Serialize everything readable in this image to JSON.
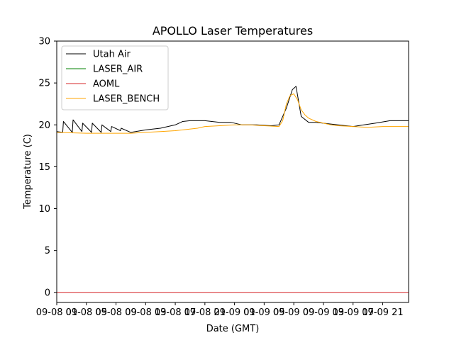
{
  "chart_data": {
    "type": "line",
    "title": "APOLLO Laser Temperatures",
    "xlabel": "Date (GMT)",
    "ylabel": "Temperature (C)",
    "x_unit": "hours since 09-08 00:00 GMT",
    "xlim": [
      0,
      47.5
    ],
    "ylim": [
      -1.2,
      30
    ],
    "grid": false,
    "legend_position": "top-left",
    "yticks": [
      0,
      5,
      10,
      15,
      20,
      25,
      30
    ],
    "xticks": [
      {
        "value": 0,
        "label": "09-08 01"
      },
      {
        "value": 4,
        "label": "09-08 05"
      },
      {
        "value": 8,
        "label": "09-08 09"
      },
      {
        "value": 12,
        "label": "09-08 13"
      },
      {
        "value": 16,
        "label": "09-08 17"
      },
      {
        "value": 20,
        "label": "09-08 21"
      },
      {
        "value": 24,
        "label": "09-09 01"
      },
      {
        "value": 28,
        "label": "09-09 05"
      },
      {
        "value": 32,
        "label": "09-09 09"
      },
      {
        "value": 36,
        "label": "09-09 13"
      },
      {
        "value": 40,
        "label": "09-09 17"
      },
      {
        "value": 44,
        "label": "09-09 21"
      }
    ],
    "series": [
      {
        "name": "Utah Air",
        "color": "#000000",
        "x": [
          0,
          0.8,
          0.9,
          2.1,
          2.2,
          3.4,
          3.5,
          4.7,
          4.8,
          6.0,
          6.1,
          7.3,
          7.4,
          8.6,
          8.7,
          10.0,
          12.0,
          14.0,
          16.0,
          17.0,
          18.0,
          20.0,
          22.0,
          23.5,
          25.0,
          27.0,
          29.0,
          30.0,
          31.0,
          31.8,
          32.3,
          33.0,
          34.0,
          35.0,
          37.0,
          40.0,
          43.0,
          45.0,
          47.5
        ],
        "y": [
          19.2,
          19.1,
          20.4,
          19.1,
          20.6,
          19.2,
          20.2,
          19.1,
          20.2,
          19.1,
          20.0,
          19.2,
          19.8,
          19.3,
          19.6,
          19.1,
          19.4,
          19.6,
          20.0,
          20.4,
          20.5,
          20.5,
          20.3,
          20.3,
          20.0,
          20.0,
          19.9,
          20.0,
          22.0,
          24.2,
          24.6,
          21.0,
          20.3,
          20.3,
          20.1,
          19.8,
          20.2,
          20.5,
          20.5
        ]
      },
      {
        "name": "LASER_AIR",
        "color": "#008000",
        "x": [],
        "y": []
      },
      {
        "name": "AOML",
        "color": "#d62728",
        "x": [
          0,
          47.5
        ],
        "y": [
          0,
          0
        ]
      },
      {
        "name": "LASER_BENCH",
        "color": "#ffa500",
        "x": [
          0,
          4,
          8,
          10,
          12,
          14,
          16,
          17,
          19,
          20,
          22,
          24,
          26,
          28,
          30.0,
          30.5,
          31.0,
          31.5,
          32.0,
          32.5,
          33.0,
          33.5,
          34.0,
          35.0,
          36.0,
          37.0,
          38.0,
          40.0,
          42.0,
          44.0,
          46.0,
          47.5
        ],
        "y": [
          19.1,
          19.0,
          19.0,
          19.0,
          19.1,
          19.2,
          19.3,
          19.4,
          19.6,
          19.8,
          19.9,
          20.0,
          20.0,
          19.9,
          19.8,
          20.5,
          22.5,
          23.5,
          23.7,
          23.0,
          21.8,
          21.2,
          20.8,
          20.4,
          20.2,
          20.0,
          19.9,
          19.8,
          19.7,
          19.8,
          19.8,
          19.8
        ]
      }
    ]
  }
}
